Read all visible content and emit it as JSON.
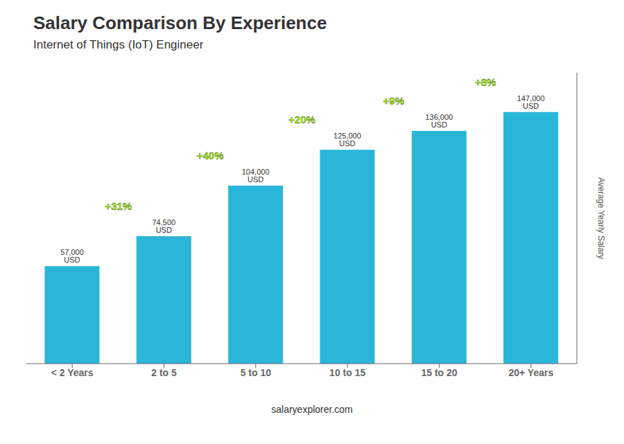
{
  "chart_data": {
    "type": "bar",
    "title": "Salary Comparison By Experience",
    "subtitle": "Internet of Things (IoT) Engineer",
    "ylabel": "Average Yearly Salary",
    "footer": "salaryexplorer.com",
    "categories": [
      "< 2 Years",
      "2 to 5",
      "5 to 10",
      "10 to 15",
      "15 to 20",
      "20+ Years"
    ],
    "values": [
      57000,
      74500,
      104000,
      125000,
      136000,
      147000
    ],
    "value_labels": [
      "57,000 USD",
      "74,500 USD",
      "104,000 USD",
      "125,000 USD",
      "136,000 USD",
      "147,000 USD"
    ],
    "data_labels": true,
    "annotations": [
      {
        "text": "+31%",
        "color": "#aaff00"
      },
      {
        "text": "+40%",
        "color": "#aaff00"
      },
      {
        "text": "+20%",
        "color": "#aaff00"
      },
      {
        "text": "+9%",
        "color": "#aaff00"
      },
      {
        "text": "+8%",
        "color": "#aaff00"
      }
    ],
    "color": "#29b6d8",
    "ylim": [
      0,
      170000
    ],
    "tick_labels": "x",
    "grid": false
  }
}
